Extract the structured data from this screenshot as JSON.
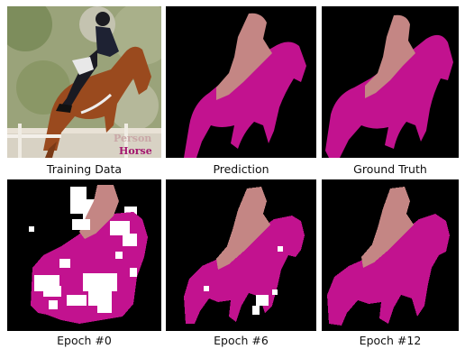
{
  "panels": [
    {
      "id": "training",
      "caption": "Training Data"
    },
    {
      "id": "prediction",
      "caption": "Prediction"
    },
    {
      "id": "ground_truth",
      "caption": "Ground Truth"
    },
    {
      "id": "epoch0",
      "caption": "Epoch #0"
    },
    {
      "id": "epoch6",
      "caption": "Epoch #6"
    },
    {
      "id": "epoch12",
      "caption": "Epoch #12"
    }
  ],
  "legend": {
    "person_label": "Person",
    "horse_label": "Horse"
  },
  "colors": {
    "person": "#c48684",
    "horse": "#c2128f",
    "background": "#000000",
    "unlabeled": "#ffffff",
    "legend_person_text": "#c9a7a7",
    "legend_horse_text": "#a3176f"
  }
}
